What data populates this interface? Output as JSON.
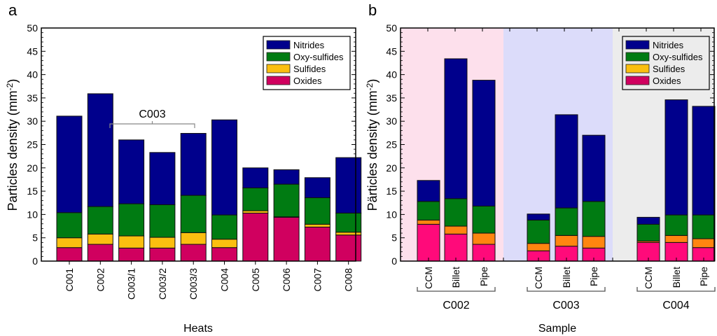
{
  "colors": {
    "Nitrides": "#00008c",
    "Oxy-sulfides": "#007b12",
    "Sulfides": "#fbbf10",
    "Oxides": "#d0005f",
    "Sulfides_b": "#ff8510",
    "Oxides_b": "#ff0a7a",
    "bg_C002": "#fde0ec",
    "bg_C003": "#dcdcfa",
    "bg_C004": "#ececec"
  },
  "chart_data": [
    {
      "type": "bar",
      "stacked": true,
      "panel_label": "a",
      "title": "",
      "xlabel": "Heats",
      "ylabel": "Particles density (mm-2)",
      "ylabel_main": "Particles density (mm",
      "ylabel_sup": "-2",
      "ylabel_close": ")",
      "ylim": [
        0,
        50
      ],
      "yticks": [
        0,
        5,
        10,
        15,
        20,
        25,
        30,
        35,
        40,
        45,
        50
      ],
      "legend_position": "top-right",
      "annotation": {
        "text": "C003",
        "spans": [
          "C003/1",
          "C003/3"
        ]
      },
      "categories": [
        "C001",
        "C002",
        "C003/1",
        "C003/2",
        "C003/3",
        "C004",
        "C005",
        "C006",
        "C007",
        "C008"
      ],
      "series": [
        {
          "name": "Oxides",
          "values": [
            2.9,
            3.6,
            2.8,
            2.8,
            3.6,
            2.9,
            10.3,
            9.4,
            7.3,
            5.6
          ]
        },
        {
          "name": "Sulfides",
          "values": [
            2.1,
            2.2,
            2.6,
            2.3,
            2.5,
            1.8,
            0.5,
            0.1,
            0.6,
            0.6
          ]
        },
        {
          "name": "Oxy-sulfides",
          "values": [
            5.4,
            5.9,
            6.9,
            7.0,
            8.0,
            5.2,
            4.9,
            7.0,
            5.7,
            4.1
          ]
        },
        {
          "name": "Nitrides",
          "values": [
            20.7,
            24.2,
            13.7,
            11.2,
            13.3,
            20.4,
            4.3,
            3.1,
            4.3,
            11.9
          ]
        }
      ],
      "legend": [
        "Nitrides",
        "Oxy-sulfides",
        "Sulfides",
        "Oxides"
      ]
    },
    {
      "type": "bar",
      "stacked": true,
      "panel_label": "b",
      "title": "",
      "xlabel": "Sample",
      "ylabel": "Pärticles density (mm-2)",
      "ylabel_main": "Pärticles density (mm",
      "ylabel_sup": "-2",
      "ylabel_close": ")",
      "ylim": [
        0,
        50
      ],
      "yticks": [
        0,
        5,
        10,
        15,
        20,
        25,
        30,
        35,
        40,
        45,
        50
      ],
      "legend_position": "top-right",
      "groups": [
        {
          "name": "C002",
          "categories": [
            "CCM",
            "Billet",
            "Pipe"
          ]
        },
        {
          "name": "C003",
          "categories": [
            "CCM",
            "Billet",
            "Pipe"
          ]
        },
        {
          "name": "C004",
          "categories": [
            "CCM",
            "Billet",
            "Pipe"
          ]
        }
      ],
      "categories": [
        "C002 CCM",
        "C002 Billet",
        "C002 Pipe",
        "C003 CCM",
        "C003 Billet",
        "C003 Pipe",
        "C004 CCM",
        "C004 Billet",
        "C004 Pipe"
      ],
      "series": [
        {
          "name": "Oxides",
          "values": [
            7.9,
            5.8,
            3.6,
            2.2,
            3.2,
            2.8,
            4.0,
            4.0,
            2.9
          ]
        },
        {
          "name": "Sulfides",
          "values": [
            0.9,
            1.7,
            2.4,
            1.6,
            2.3,
            2.5,
            0.3,
            1.5,
            1.9
          ]
        },
        {
          "name": "Oxy-sulfides",
          "values": [
            4.0,
            5.9,
            5.8,
            5.0,
            5.9,
            7.5,
            3.6,
            4.4,
            5.1
          ]
        },
        {
          "name": "Nitrides",
          "values": [
            4.5,
            30.0,
            27.0,
            1.3,
            20.0,
            14.2,
            1.5,
            24.7,
            23.3
          ]
        }
      ],
      "legend": [
        "Nitrides",
        "Oxy-sulfides",
        "Sulfides",
        "Oxides"
      ]
    }
  ]
}
